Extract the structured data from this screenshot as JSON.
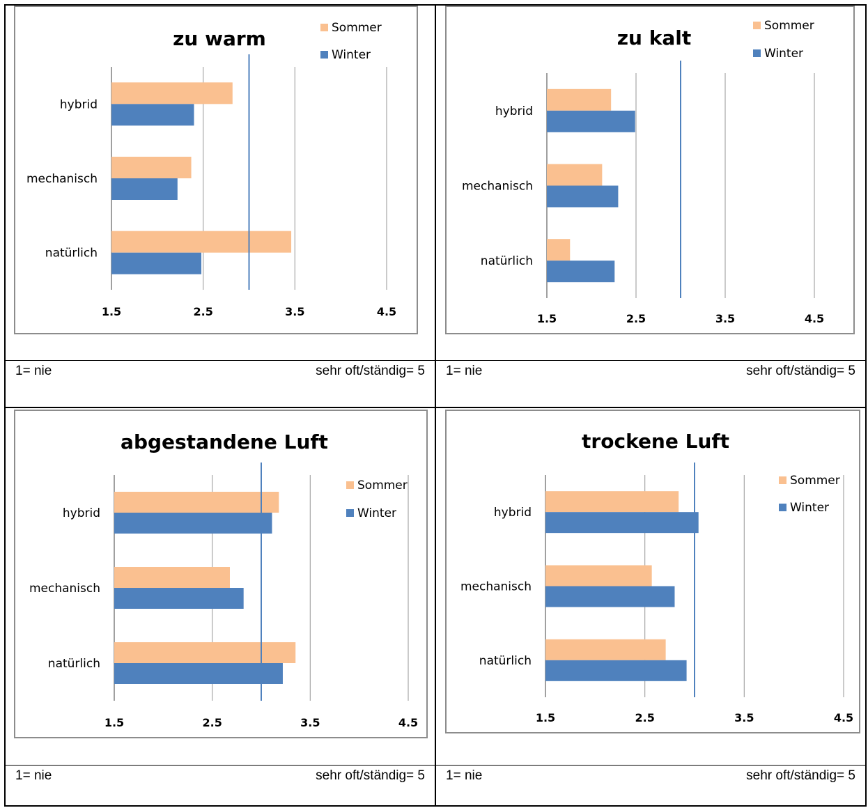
{
  "colors": {
    "sommer": "#FAC090",
    "winter": "#4F81BD",
    "reference_line": "#4F81BD",
    "grid": "#A6A6A6",
    "axis": "#808080",
    "frame": "#8C8C8C"
  },
  "scale": {
    "left": "1= nie",
    "right": "sehr oft/ständig= 5"
  },
  "chart_data": [
    {
      "type": "bar",
      "orientation": "horizontal",
      "title": "zu warm",
      "categories": [
        "hybrid",
        "mechanisch",
        "natürlich"
      ],
      "series": [
        {
          "name": "Sommer",
          "values": [
            2.82,
            2.37,
            3.46
          ]
        },
        {
          "name": "Winter",
          "values": [
            2.4,
            2.22,
            2.48
          ]
        }
      ],
      "xlim": [
        1.5,
        4.5
      ],
      "xticks": [
        "1.5",
        "2.5",
        "3.5",
        "4.5"
      ],
      "reference_line": 3.0,
      "grid": true,
      "legend": "top-right"
    },
    {
      "type": "bar",
      "orientation": "horizontal",
      "title": "zu kalt",
      "categories": [
        "hybrid",
        "mechanisch",
        "natürlich"
      ],
      "series": [
        {
          "name": "Sommer",
          "values": [
            2.22,
            2.12,
            1.76
          ]
        },
        {
          "name": "Winter",
          "values": [
            2.49,
            2.3,
            2.26
          ]
        }
      ],
      "xlim": [
        1.5,
        4.5
      ],
      "xticks": [
        "1.5",
        "2.5",
        "3.5",
        "4.5"
      ],
      "reference_line": 3.0,
      "grid": true,
      "legend": "top-right"
    },
    {
      "type": "bar",
      "orientation": "horizontal",
      "title": "abgestandene Luft",
      "categories": [
        "hybrid",
        "mechanisch",
        "natürlich"
      ],
      "series": [
        {
          "name": "Sommer",
          "values": [
            3.18,
            2.68,
            3.35
          ]
        },
        {
          "name": "Winter",
          "values": [
            3.11,
            2.82,
            3.22
          ]
        }
      ],
      "xlim": [
        1.5,
        4.5
      ],
      "xticks": [
        "1.5",
        "2.5",
        "3.5",
        "4.5"
      ],
      "reference_line": 3.0,
      "grid": true,
      "legend": "top-right"
    },
    {
      "type": "bar",
      "orientation": "horizontal",
      "title": "trockene Luft",
      "categories": [
        "hybrid",
        "mechanisch",
        "natürlich"
      ],
      "series": [
        {
          "name": "Sommer",
          "values": [
            2.84,
            2.57,
            2.71
          ]
        },
        {
          "name": "Winter",
          "values": [
            3.04,
            2.8,
            2.92
          ]
        }
      ],
      "xlim": [
        1.5,
        4.5
      ],
      "xticks": [
        "1.5",
        "2.5",
        "3.5",
        "4.5"
      ],
      "reference_line": 3.0,
      "grid": true,
      "legend": "top-right"
    }
  ]
}
